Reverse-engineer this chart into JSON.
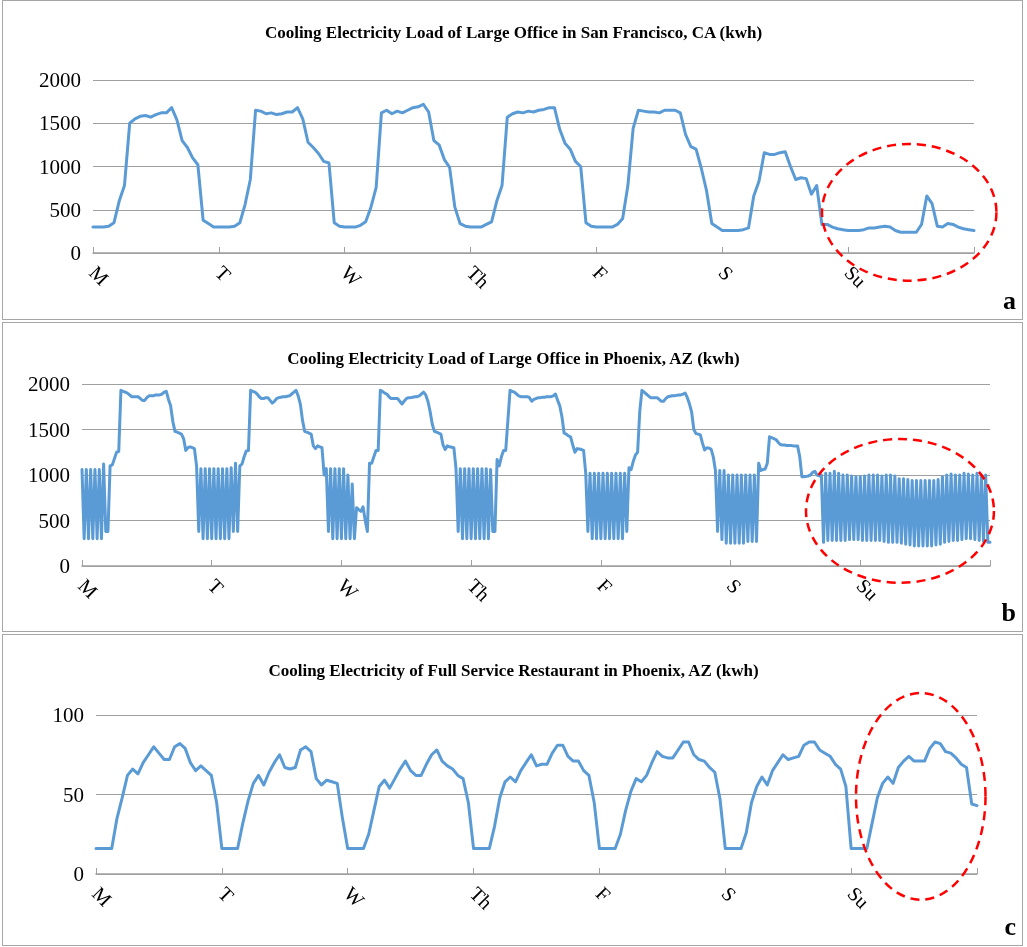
{
  "chart_data": [
    {
      "type": "line",
      "title": "Cooling Electricity Load of Large Office in San Francisco, CA (kwh)",
      "annotations": [
        "a"
      ],
      "grid": "y",
      "marker": "none",
      "categories": [
        "M",
        null,
        null,
        null,
        null,
        null,
        null,
        null,
        null,
        null,
        null,
        null,
        null,
        null,
        null,
        null,
        null,
        null,
        null,
        null,
        null,
        null,
        null,
        null,
        "T",
        null,
        null,
        null,
        null,
        null,
        null,
        null,
        null,
        null,
        null,
        null,
        null,
        null,
        null,
        null,
        null,
        null,
        null,
        null,
        null,
        null,
        null,
        null,
        "W",
        null,
        null,
        null,
        null,
        null,
        null,
        null,
        null,
        null,
        null,
        null,
        null,
        null,
        null,
        null,
        null,
        null,
        null,
        null,
        null,
        null,
        null,
        null,
        "Th",
        null,
        null,
        null,
        null,
        null,
        null,
        null,
        null,
        null,
        null,
        null,
        null,
        null,
        null,
        null,
        null,
        null,
        null,
        null,
        null,
        null,
        null,
        null,
        "F",
        null,
        null,
        null,
        null,
        null,
        null,
        null,
        null,
        null,
        null,
        null,
        null,
        null,
        null,
        null,
        null,
        null,
        null,
        null,
        null,
        null,
        null,
        null,
        "S",
        null,
        null,
        null,
        null,
        null,
        null,
        null,
        null,
        null,
        null,
        null,
        null,
        null,
        null,
        null,
        null,
        null,
        null,
        null,
        null,
        null,
        null,
        null,
        "Su",
        null,
        null,
        null,
        null,
        null,
        null,
        null,
        null,
        null,
        null,
        null,
        null,
        null,
        null,
        null,
        null,
        null,
        null,
        null,
        null,
        null,
        null,
        null,
        null
      ],
      "ylim": [
        0,
        2000
      ],
      "yticks": [
        0,
        500,
        1000,
        1500,
        2000
      ],
      "series": [
        {
          "color": "#5b9bd5",
          "values": [
            300,
            300,
            300,
            310,
            350,
            600,
            780,
            1500,
            1550,
            1580,
            1590,
            1570,
            1600,
            1620,
            1620,
            1680,
            1540,
            1300,
            1220,
            1100,
            1020,
            380,
            340,
            300,
            300,
            300,
            300,
            310,
            350,
            560,
            850,
            1650,
            1640,
            1610,
            1620,
            1600,
            1610,
            1630,
            1630,
            1680,
            1550,
            1280,
            1220,
            1150,
            1060,
            1040,
            350,
            310,
            300,
            300,
            300,
            320,
            360,
            530,
            760,
            1620,
            1650,
            1610,
            1640,
            1620,
            1650,
            1680,
            1690,
            1720,
            1630,
            1300,
            1250,
            1080,
            990,
            530,
            340,
            310,
            300,
            300,
            300,
            330,
            360,
            600,
            780,
            1570,
            1610,
            1630,
            1620,
            1640,
            1630,
            1650,
            1660,
            1680,
            1680,
            1430,
            1270,
            1200,
            1060,
            1000,
            350,
            310,
            300,
            300,
            300,
            300,
            330,
            400,
            780,
            1440,
            1650,
            1640,
            1630,
            1630,
            1620,
            1650,
            1650,
            1650,
            1620,
            1370,
            1230,
            1200,
            980,
            720,
            340,
            300,
            260,
            260,
            260,
            260,
            270,
            290,
            660,
            830,
            1160,
            1140,
            1140,
            1160,
            1170,
            1000,
            850,
            870,
            860,
            680,
            780,
            330,
            330,
            300,
            280,
            270,
            260,
            260,
            260,
            270,
            290,
            290,
            300,
            310,
            300,
            260,
            240,
            240,
            240,
            240,
            330,
            660,
            570,
            310,
            300,
            340,
            330,
            300,
            280,
            270,
            260
          ]
        }
      ]
    },
    {
      "type": "line",
      "title": "Cooling Electricity Load of Large Office in Phoenix, AZ (kwh)",
      "annotations": [
        "b"
      ],
      "grid": "y",
      "marker": "none",
      "categories": [
        "M",
        null,
        null,
        null,
        null,
        null,
        null,
        null,
        null,
        null,
        null,
        null,
        null,
        null,
        null,
        null,
        null,
        null,
        null,
        null,
        null,
        null,
        null,
        null,
        null,
        null,
        null,
        null,
        null,
        null,
        null,
        null,
        null,
        null,
        null,
        null,
        null,
        null,
        null,
        null,
        null,
        null,
        null,
        null,
        null,
        null,
        null,
        null,
        null,
        null,
        null,
        null,
        null,
        null,
        null,
        null,
        null,
        null,
        null,
        null,
        "T",
        null,
        null,
        null,
        null,
        null,
        null,
        null,
        null,
        null,
        null,
        null,
        null,
        null,
        null,
        null,
        null,
        null,
        null,
        null,
        null,
        null,
        null,
        null,
        null,
        null,
        null,
        null,
        null,
        null,
        null,
        null,
        null,
        null,
        null,
        null,
        null,
        null,
        null,
        null,
        null,
        null,
        null,
        null,
        null,
        null,
        null,
        null,
        null,
        null,
        null,
        null,
        null,
        null,
        null,
        null,
        null,
        null,
        null,
        null,
        "W",
        null,
        null,
        null,
        null,
        null,
        null,
        null,
        null,
        null,
        null,
        null,
        null,
        null,
        null,
        null,
        null,
        null,
        null,
        null,
        null,
        null,
        null,
        null,
        null,
        null,
        null,
        null,
        null,
        null,
        null,
        null,
        null,
        null,
        null,
        null,
        null,
        null,
        null,
        null,
        null,
        null,
        null,
        null,
        null,
        null,
        null,
        null,
        null,
        null,
        null,
        null,
        null,
        null,
        null,
        null,
        null,
        null,
        null,
        null,
        "Th",
        null,
        null,
        null,
        null,
        null,
        null,
        null,
        null,
        null,
        null,
        null,
        null,
        null,
        null,
        null,
        null,
        null,
        null,
        null,
        null,
        null,
        null,
        null,
        null,
        null,
        null,
        null,
        null,
        null,
        null,
        null,
        null,
        null,
        null,
        null,
        null,
        null,
        null,
        null,
        null,
        null,
        null,
        null,
        null,
        null,
        null,
        null,
        null,
        null,
        null,
        null,
        null,
        null,
        null,
        null,
        null,
        null,
        null,
        null,
        "F",
        null,
        null,
        null,
        null,
        null,
        null,
        null,
        null,
        null,
        null,
        null,
        null,
        null,
        null,
        null,
        null,
        null,
        null,
        null,
        null,
        null,
        null,
        null,
        null,
        null,
        null,
        null,
        null,
        null,
        null,
        null,
        null,
        null,
        null,
        null,
        null,
        null,
        null,
        null,
        null,
        null,
        null,
        null,
        null,
        null,
        null,
        null,
        null,
        null,
        null,
        null,
        null,
        null,
        null,
        null,
        null,
        null,
        null,
        null,
        "S",
        null,
        null,
        null,
        null,
        null,
        null,
        null,
        null,
        null,
        null,
        null,
        null,
        null,
        null,
        null,
        null,
        null,
        null,
        null,
        null,
        null,
        null,
        null,
        null,
        null,
        null,
        null,
        null,
        null,
        null,
        null,
        null,
        null,
        null,
        null,
        null,
        null,
        null,
        null,
        null,
        null,
        null,
        null,
        null,
        null,
        null,
        null,
        null,
        null,
        null,
        null,
        null,
        null,
        null,
        null,
        null,
        null,
        null,
        null,
        "Su",
        null,
        null,
        null,
        null,
        null,
        null,
        null,
        null,
        null,
        null,
        null,
        null,
        null,
        null,
        null,
        null,
        null,
        null,
        null,
        null,
        null,
        null,
        null,
        null,
        null,
        null,
        null,
        null,
        null,
        null,
        null,
        null,
        null,
        null,
        null,
        null,
        null,
        null,
        null,
        null,
        null,
        null,
        null,
        null,
        null,
        null,
        null,
        null,
        null,
        null,
        null,
        null,
        null,
        null,
        null,
        null,
        null,
        null,
        null,
        null
      ],
      "ylim": [
        0,
        2000
      ],
      "yticks": [
        0,
        500,
        1000,
        1500,
        2000
      ],
      "series": [
        {
          "color": "#5b9bd5",
          "values": [
            1060,
            300,
            1060,
            300,
            1060,
            300,
            1060,
            300,
            1060,
            300,
            1120,
            380,
            380,
            1100,
            1110,
            1180,
            1250,
            1260,
            1930,
            1920,
            1910,
            1900,
            1880,
            1860,
            1860,
            1860,
            1860,
            1840,
            1820,
            1820,
            1850,
            1870,
            1870,
            1870,
            1880,
            1880,
            1880,
            1890,
            1910,
            1920,
            1830,
            1760,
            1590,
            1480,
            1470,
            1460,
            1450,
            1400,
            1270,
            1300,
            1310,
            1300,
            1290,
            1100,
            380,
            1070,
            300,
            1070,
            300,
            1070,
            300,
            1070,
            300,
            1070,
            300,
            1070,
            300,
            1070,
            300,
            1080,
            380,
            1130,
            380,
            1100,
            1120,
            1200,
            1265,
            1270,
            1930,
            1920,
            1910,
            1890,
            1860,
            1840,
            1840,
            1850,
            1850,
            1820,
            1790,
            1810,
            1840,
            1850,
            1855,
            1860,
            1860,
            1865,
            1870,
            1890,
            1910,
            1930,
            1870,
            1780,
            1600,
            1480,
            1470,
            1460,
            1450,
            1320,
            1290,
            1320,
            1310,
            1300,
            1000,
            1070,
            380,
            1070,
            300,
            1070,
            300,
            1070,
            300,
            1070,
            300,
            1000,
            300,
            900,
            300,
            640,
            620,
            600,
            650,
            500,
            380,
            1130,
            1130,
            1200,
            1270,
            1270,
            1930,
            1920,
            1900,
            1890,
            1860,
            1840,
            1840,
            1840,
            1840,
            1810,
            1780,
            1810,
            1840,
            1850,
            1850,
            1855,
            1860,
            1860,
            1870,
            1890,
            1910,
            1880,
            1810,
            1700,
            1560,
            1480,
            1470,
            1460,
            1450,
            1330,
            1280,
            1320,
            1310,
            1305,
            1300,
            1070,
            380,
            1070,
            300,
            1070,
            300,
            1070,
            300,
            1070,
            300,
            1070,
            300,
            1070,
            300,
            1070,
            300,
            1060,
            380,
            380,
            1170,
            1100,
            1200,
            1270,
            1270,
            1600,
            1930,
            1920,
            1910,
            1890,
            1870,
            1860,
            1860,
            1860,
            1860,
            1850,
            1810,
            1830,
            1840,
            1850,
            1850,
            1855,
            1855,
            1860,
            1860,
            1860,
            1870,
            1890,
            1820,
            1760,
            1640,
            1460,
            1450,
            1430,
            1420,
            1330,
            1250,
            1290,
            1285,
            1280,
            1270,
            1020,
            380,
            1020,
            300,
            1020,
            300,
            1020,
            300,
            1020,
            300,
            1020,
            300,
            1020,
            300,
            1020,
            300,
            1020,
            300,
            1020,
            380,
            1080,
            1060,
            1150,
            1220,
            1250,
            1700,
            1930,
            1910,
            1890,
            1870,
            1850,
            1850,
            1850,
            1850,
            1830,
            1810,
            1810,
            1840,
            1860,
            1865,
            1870,
            1870,
            1875,
            1880,
            1880,
            1890,
            1900,
            1850,
            1780,
            1690,
            1500,
            1455,
            1450,
            1440,
            1350,
            1275,
            1300,
            1295,
            1285,
            1200,
            1050,
            380,
            1050,
            290,
            1050,
            250,
            1000,
            250,
            1000,
            250,
            1000,
            250,
            1000,
            250,
            1000,
            270,
            1000,
            270,
            1000,
            270,
            1130,
            1050,
            1060,
            1065,
            1130,
            1420,
            1410,
            1400,
            1390,
            1360,
            1335,
            1330,
            1330,
            1325,
            1325,
            1325,
            1320,
            1320,
            1320,
            1200,
            980,
            980,
            985,
            990,
            1000,
            1030,
            1040,
            1000,
            990,
            1000,
            260,
            1020,
            280,
            1020,
            280,
            1040,
            280,
            1020,
            280,
            1000,
            280,
            1000,
            290,
            990,
            290,
            980,
            290,
            980,
            280,
            990,
            280,
            1000,
            280,
            1000,
            280,
            1000,
            280,
            990,
            270,
            1000,
            260,
            1000,
            260,
            990,
            260,
            960,
            250,
            960,
            240,
            950,
            230,
            940,
            220,
            940,
            220,
            940,
            220,
            940,
            220,
            940,
            220,
            940,
            230,
            950,
            240,
            980,
            260,
            1000,
            270,
            1010,
            280,
            1000,
            280,
            1000,
            290,
            1020,
            300,
            1010,
            300,
            1000,
            290,
            1020,
            280,
            1000,
            270,
            1000,
            260,
            260
          ]
        }
      ]
    },
    {
      "type": "line",
      "title": "Cooling Electricity of Full Service Restaurant in Phoenix, AZ (kwh)",
      "annotations": [
        "c"
      ],
      "grid": "y",
      "marker": "none",
      "categories": [
        "M",
        null,
        null,
        null,
        null,
        null,
        null,
        null,
        null,
        null,
        null,
        null,
        null,
        null,
        null,
        null,
        null,
        null,
        null,
        null,
        null,
        null,
        null,
        null,
        "T",
        null,
        null,
        null,
        null,
        null,
        null,
        null,
        null,
        null,
        null,
        null,
        null,
        null,
        null,
        null,
        null,
        null,
        null,
        null,
        null,
        null,
        null,
        null,
        "W",
        null,
        null,
        null,
        null,
        null,
        null,
        null,
        null,
        null,
        null,
        null,
        null,
        null,
        null,
        null,
        null,
        null,
        null,
        null,
        null,
        null,
        null,
        null,
        "Th",
        null,
        null,
        null,
        null,
        null,
        null,
        null,
        null,
        null,
        null,
        null,
        null,
        null,
        null,
        null,
        null,
        null,
        null,
        null,
        null,
        null,
        null,
        null,
        "F",
        null,
        null,
        null,
        null,
        null,
        null,
        null,
        null,
        null,
        null,
        null,
        null,
        null,
        null,
        null,
        null,
        null,
        null,
        null,
        null,
        null,
        null,
        null,
        "S",
        null,
        null,
        null,
        null,
        null,
        null,
        null,
        null,
        null,
        null,
        null,
        null,
        null,
        null,
        null,
        null,
        null,
        null,
        null,
        null,
        null,
        null,
        null,
        "Su",
        null,
        null,
        null,
        null,
        null,
        null,
        null,
        null,
        null,
        null,
        null,
        null,
        null,
        null,
        null,
        null,
        null,
        null,
        null,
        null,
        null,
        null,
        null,
        null
      ],
      "ylim": [
        0,
        100
      ],
      "yticks": [
        0,
        50,
        100
      ],
      "series": [
        {
          "color": "#5b9bd5",
          "values": [
            16,
            16,
            16,
            16,
            35,
            48,
            62,
            66,
            63,
            70,
            75,
            80,
            76,
            72,
            72,
            80,
            82,
            79,
            70,
            65,
            68,
            65,
            62,
            45,
            16,
            16,
            16,
            16,
            32,
            46,
            57,
            62,
            56,
            64,
            70,
            75,
            67,
            66,
            67,
            78,
            80,
            77,
            60,
            56,
            59,
            58,
            57,
            35,
            16,
            16,
            16,
            16,
            25,
            40,
            55,
            59,
            54,
            60,
            66,
            71,
            65,
            62,
            62,
            69,
            75,
            78,
            71,
            68,
            66,
            62,
            60,
            45,
            16,
            16,
            16,
            16,
            30,
            48,
            58,
            61,
            58,
            65,
            70,
            75,
            68,
            69,
            69,
            76,
            81,
            81,
            74,
            71,
            71,
            65,
            62,
            45,
            16,
            16,
            16,
            16,
            25,
            40,
            52,
            60,
            58,
            62,
            70,
            77,
            74,
            73,
            73,
            78,
            83,
            83,
            75,
            72,
            71,
            67,
            64,
            47,
            16,
            16,
            16,
            16,
            26,
            45,
            55,
            61,
            56,
            65,
            70,
            75,
            72,
            73,
            74,
            81,
            83,
            83,
            78,
            76,
            74,
            69,
            66,
            55,
            16,
            16,
            16,
            16,
            32,
            48,
            57,
            61,
            57,
            67,
            71,
            74,
            71,
            71,
            71,
            79,
            83,
            82,
            77,
            76,
            73,
            69,
            67,
            44,
            43
          ]
        }
      ]
    }
  ]
}
